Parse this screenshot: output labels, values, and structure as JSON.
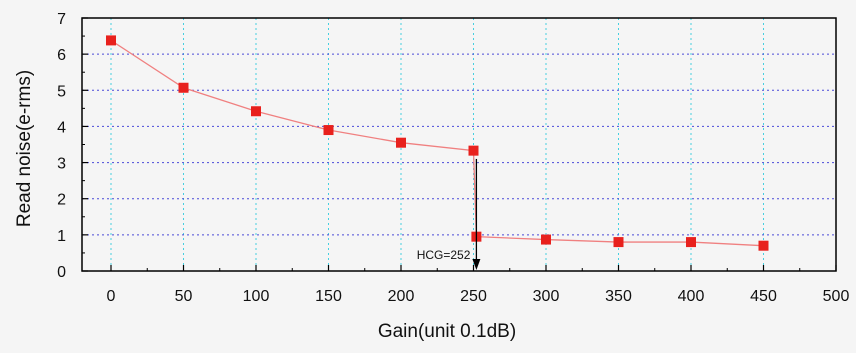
{
  "chart_data": {
    "type": "line",
    "xlabel": "Gain(unit 0.1dB)",
    "ylabel": "Read noise(e-rms)",
    "xlim": [
      -20,
      500
    ],
    "ylim": [
      0,
      7
    ],
    "x_ticks": [
      0,
      50,
      100,
      150,
      200,
      250,
      300,
      350,
      400,
      450,
      500
    ],
    "y_ticks": [
      0,
      1,
      2,
      3,
      4,
      5,
      6,
      7
    ],
    "grid": true,
    "series": [
      {
        "color": "#e8211d",
        "line_color": "#f08080",
        "marker": "square",
        "x": [
          0,
          50,
          100,
          150,
          200,
          250,
          252,
          300,
          350,
          400,
          450
        ],
        "y": [
          6.38,
          5.07,
          4.42,
          3.9,
          3.55,
          3.33,
          0.95,
          0.87,
          0.8,
          0.8,
          0.7
        ]
      }
    ],
    "annotation": {
      "text": "HCG=252",
      "x": 252
    }
  }
}
